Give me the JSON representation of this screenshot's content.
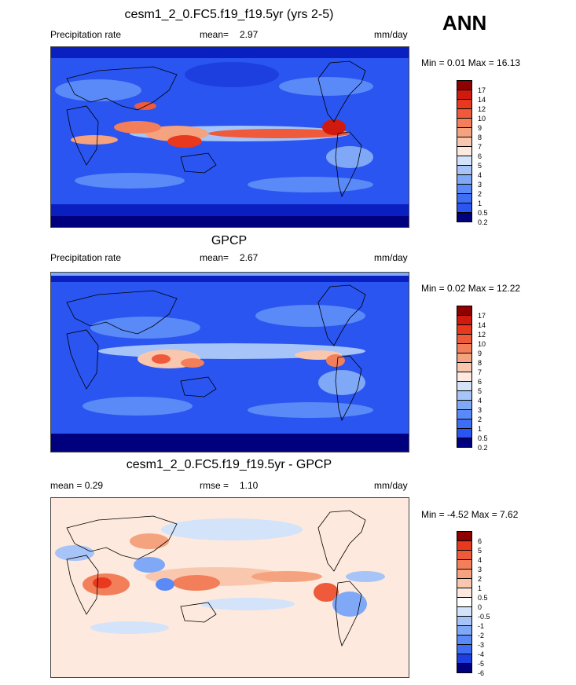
{
  "season": "ANN",
  "colors": {
    "precip": [
      "#00007f",
      "#0a1fbf",
      "#1d3fe0",
      "#2a55f0",
      "#3d6ef5",
      "#5a8af7",
      "#7fa8f7",
      "#a6c4f7",
      "#d3e3fa",
      "#fde9dd",
      "#f9c7ad",
      "#f5a27f",
      "#f27e5a",
      "#ee5a3a",
      "#e8391f",
      "#d11a0e",
      "#8f0000"
    ],
    "diff": [
      "#00007f",
      "#0a1fbf",
      "#1d3fe0",
      "#3d6ef5",
      "#5a8af7",
      "#7fa8f7",
      "#a6c4f7",
      "#d3e3fa",
      "#ffffff",
      "#fde9dd",
      "#f9c7ad",
      "#f5a27f",
      "#f27e5a",
      "#ee5a3a",
      "#e8391f",
      "#8f0000"
    ]
  },
  "panels": [
    {
      "title": "cesm1_2_0.FC5.f19_f19.5yr (yrs 2-5)",
      "left_label": "Precipitation rate",
      "mean_label": "mean=",
      "mean_value": "2.97",
      "units": "mm/day",
      "minmax": "Min =   0.01 Max =  16.13",
      "ticks": [
        "17",
        "14",
        "12",
        "10",
        "9",
        "8",
        "7",
        "6",
        "5",
        "4",
        "3",
        "2",
        "1",
        "0.5",
        "0.2"
      ]
    },
    {
      "title": "GPCP",
      "left_label": "Precipitation rate",
      "mean_label": "mean=",
      "mean_value": "2.67",
      "units": "mm/day",
      "minmax": "Min =   0.02 Max =  12.22",
      "ticks": [
        "17",
        "14",
        "12",
        "10",
        "9",
        "8",
        "7",
        "6",
        "5",
        "4",
        "3",
        "2",
        "1",
        "0.5",
        "0.2"
      ]
    },
    {
      "title": "cesm1_2_0.FC5.f19_f19.5yr - GPCP",
      "left_label": "mean =   0.29",
      "mean_label": "rmse =",
      "mean_value": "1.10",
      "units": "mm/day",
      "minmax": "Min =  -4.52 Max =   7.62",
      "ticks": [
        "6",
        "5",
        "4",
        "3",
        "2",
        "1",
        "0.5",
        "0",
        "-0.5",
        "-1",
        "-2",
        "-3",
        "-4",
        "-5",
        "-6"
      ]
    }
  ]
}
